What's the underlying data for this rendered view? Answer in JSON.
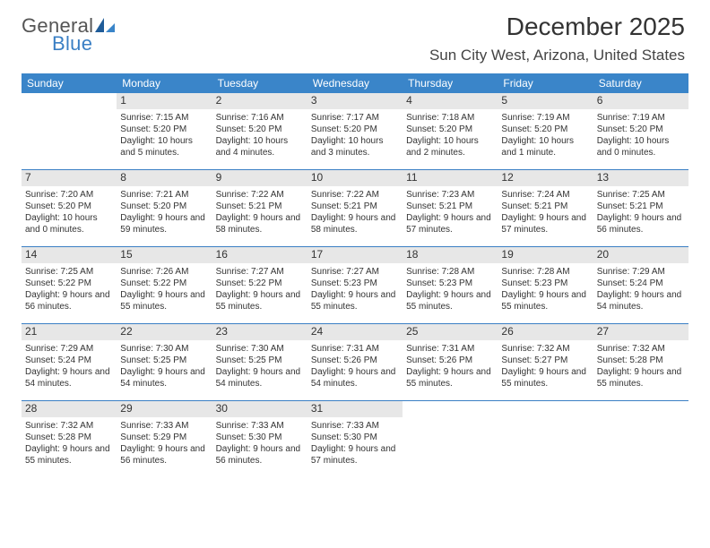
{
  "logo": {
    "general": "General",
    "blue": "Blue"
  },
  "title": "December 2025",
  "location": "Sun City West, Arizona, United States",
  "colors": {
    "header_bg": "#3a85c9",
    "header_text": "#ffffff",
    "daynum_bg": "#e7e7e7",
    "border": "#3a7fc4",
    "logo_gray": "#555555",
    "logo_blue": "#3a7fc4",
    "body_text": "#333333",
    "page_bg": "#ffffff"
  },
  "weekdays": [
    "Sunday",
    "Monday",
    "Tuesday",
    "Wednesday",
    "Thursday",
    "Friday",
    "Saturday"
  ],
  "grid": [
    [
      null,
      {
        "d": "1",
        "sr": "Sunrise: 7:15 AM",
        "ss": "Sunset: 5:20 PM",
        "dl": "Daylight: 10 hours and 5 minutes."
      },
      {
        "d": "2",
        "sr": "Sunrise: 7:16 AM",
        "ss": "Sunset: 5:20 PM",
        "dl": "Daylight: 10 hours and 4 minutes."
      },
      {
        "d": "3",
        "sr": "Sunrise: 7:17 AM",
        "ss": "Sunset: 5:20 PM",
        "dl": "Daylight: 10 hours and 3 minutes."
      },
      {
        "d": "4",
        "sr": "Sunrise: 7:18 AM",
        "ss": "Sunset: 5:20 PM",
        "dl": "Daylight: 10 hours and 2 minutes."
      },
      {
        "d": "5",
        "sr": "Sunrise: 7:19 AM",
        "ss": "Sunset: 5:20 PM",
        "dl": "Daylight: 10 hours and 1 minute."
      },
      {
        "d": "6",
        "sr": "Sunrise: 7:19 AM",
        "ss": "Sunset: 5:20 PM",
        "dl": "Daylight: 10 hours and 0 minutes."
      }
    ],
    [
      {
        "d": "7",
        "sr": "Sunrise: 7:20 AM",
        "ss": "Sunset: 5:20 PM",
        "dl": "Daylight: 10 hours and 0 minutes."
      },
      {
        "d": "8",
        "sr": "Sunrise: 7:21 AM",
        "ss": "Sunset: 5:20 PM",
        "dl": "Daylight: 9 hours and 59 minutes."
      },
      {
        "d": "9",
        "sr": "Sunrise: 7:22 AM",
        "ss": "Sunset: 5:21 PM",
        "dl": "Daylight: 9 hours and 58 minutes."
      },
      {
        "d": "10",
        "sr": "Sunrise: 7:22 AM",
        "ss": "Sunset: 5:21 PM",
        "dl": "Daylight: 9 hours and 58 minutes."
      },
      {
        "d": "11",
        "sr": "Sunrise: 7:23 AM",
        "ss": "Sunset: 5:21 PM",
        "dl": "Daylight: 9 hours and 57 minutes."
      },
      {
        "d": "12",
        "sr": "Sunrise: 7:24 AM",
        "ss": "Sunset: 5:21 PM",
        "dl": "Daylight: 9 hours and 57 minutes."
      },
      {
        "d": "13",
        "sr": "Sunrise: 7:25 AM",
        "ss": "Sunset: 5:21 PM",
        "dl": "Daylight: 9 hours and 56 minutes."
      }
    ],
    [
      {
        "d": "14",
        "sr": "Sunrise: 7:25 AM",
        "ss": "Sunset: 5:22 PM",
        "dl": "Daylight: 9 hours and 56 minutes."
      },
      {
        "d": "15",
        "sr": "Sunrise: 7:26 AM",
        "ss": "Sunset: 5:22 PM",
        "dl": "Daylight: 9 hours and 55 minutes."
      },
      {
        "d": "16",
        "sr": "Sunrise: 7:27 AM",
        "ss": "Sunset: 5:22 PM",
        "dl": "Daylight: 9 hours and 55 minutes."
      },
      {
        "d": "17",
        "sr": "Sunrise: 7:27 AM",
        "ss": "Sunset: 5:23 PM",
        "dl": "Daylight: 9 hours and 55 minutes."
      },
      {
        "d": "18",
        "sr": "Sunrise: 7:28 AM",
        "ss": "Sunset: 5:23 PM",
        "dl": "Daylight: 9 hours and 55 minutes."
      },
      {
        "d": "19",
        "sr": "Sunrise: 7:28 AM",
        "ss": "Sunset: 5:23 PM",
        "dl": "Daylight: 9 hours and 55 minutes."
      },
      {
        "d": "20",
        "sr": "Sunrise: 7:29 AM",
        "ss": "Sunset: 5:24 PM",
        "dl": "Daylight: 9 hours and 54 minutes."
      }
    ],
    [
      {
        "d": "21",
        "sr": "Sunrise: 7:29 AM",
        "ss": "Sunset: 5:24 PM",
        "dl": "Daylight: 9 hours and 54 minutes."
      },
      {
        "d": "22",
        "sr": "Sunrise: 7:30 AM",
        "ss": "Sunset: 5:25 PM",
        "dl": "Daylight: 9 hours and 54 minutes."
      },
      {
        "d": "23",
        "sr": "Sunrise: 7:30 AM",
        "ss": "Sunset: 5:25 PM",
        "dl": "Daylight: 9 hours and 54 minutes."
      },
      {
        "d": "24",
        "sr": "Sunrise: 7:31 AM",
        "ss": "Sunset: 5:26 PM",
        "dl": "Daylight: 9 hours and 54 minutes."
      },
      {
        "d": "25",
        "sr": "Sunrise: 7:31 AM",
        "ss": "Sunset: 5:26 PM",
        "dl": "Daylight: 9 hours and 55 minutes."
      },
      {
        "d": "26",
        "sr": "Sunrise: 7:32 AM",
        "ss": "Sunset: 5:27 PM",
        "dl": "Daylight: 9 hours and 55 minutes."
      },
      {
        "d": "27",
        "sr": "Sunrise: 7:32 AM",
        "ss": "Sunset: 5:28 PM",
        "dl": "Daylight: 9 hours and 55 minutes."
      }
    ],
    [
      {
        "d": "28",
        "sr": "Sunrise: 7:32 AM",
        "ss": "Sunset: 5:28 PM",
        "dl": "Daylight: 9 hours and 55 minutes."
      },
      {
        "d": "29",
        "sr": "Sunrise: 7:33 AM",
        "ss": "Sunset: 5:29 PM",
        "dl": "Daylight: 9 hours and 56 minutes."
      },
      {
        "d": "30",
        "sr": "Sunrise: 7:33 AM",
        "ss": "Sunset: 5:30 PM",
        "dl": "Daylight: 9 hours and 56 minutes."
      },
      {
        "d": "31",
        "sr": "Sunrise: 7:33 AM",
        "ss": "Sunset: 5:30 PM",
        "dl": "Daylight: 9 hours and 57 minutes."
      },
      null,
      null,
      null
    ]
  ]
}
